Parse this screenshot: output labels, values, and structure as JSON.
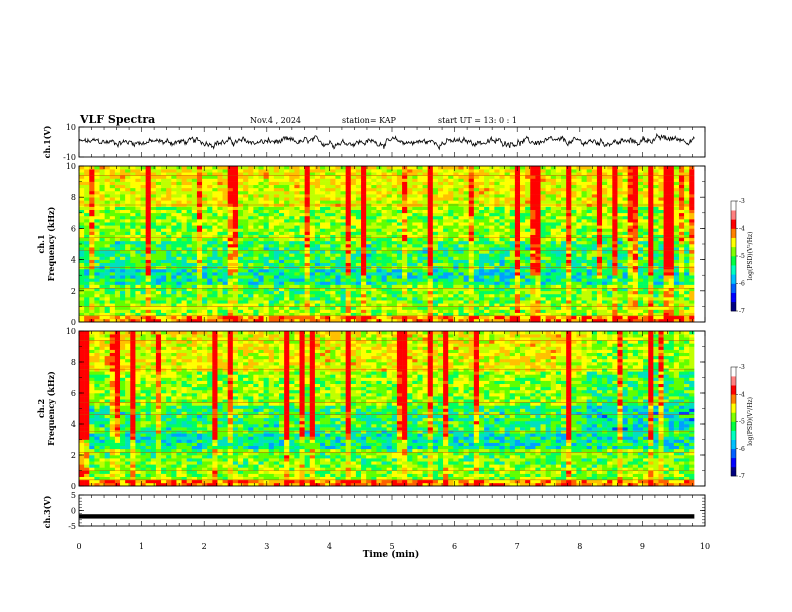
{
  "header": {
    "title": "VLF Spectra",
    "date": "Nov.4 , 2024",
    "station": "station= KAP",
    "start": "start UT =  13: 0 : 1"
  },
  "colorbar": {
    "label": "log(PSD)(V²/Hz)",
    "ticks": [
      "-3",
      "-4",
      "-5",
      "-6",
      "-7"
    ],
    "range": [
      -7,
      -3
    ],
    "colors": [
      "#000080",
      "#0000ff",
      "#00c0ff",
      "#00ff80",
      "#80ff00",
      "#ffff00",
      "#ff8000",
      "#ff0000",
      "#ffffff"
    ]
  },
  "chart_data": [
    {
      "type": "line",
      "name": "ch1-waveform",
      "ylabel": "ch.1(V)",
      "ylim": [
        -10,
        10
      ],
      "yticks": [
        "10",
        "-10"
      ],
      "xlim": [
        0,
        10
      ],
      "description_values": "noisy waveform roughly between -5 and +5 V over 0-9.8 min"
    },
    {
      "type": "heatmap",
      "name": "ch1-spectrogram",
      "ylabel": "ch.1\nFrequency (kHz)",
      "ylim": [
        0,
        10
      ],
      "yticks": [
        "0",
        "2",
        "4",
        "6",
        "8",
        "10"
      ],
      "xlim": [
        0,
        9.8
      ],
      "zrange": [
        -7,
        -3
      ]
    },
    {
      "type": "heatmap",
      "name": "ch2-spectrogram",
      "ylabel": "ch.2\nFrequency (kHz)",
      "ylim": [
        0,
        10
      ],
      "yticks": [
        "0",
        "2",
        "4",
        "6",
        "8",
        "10"
      ],
      "xlim": [
        0,
        9.8
      ],
      "zrange": [
        -7,
        -3
      ]
    },
    {
      "type": "line",
      "name": "ch3-waveform",
      "ylabel": "ch.3(V)",
      "ylim": [
        -5,
        5
      ],
      "yticks": [
        "5",
        "0",
        "-5"
      ],
      "xlim": [
        0,
        10
      ],
      "values_hint": "near constant about -2 V with small fluctuation"
    }
  ],
  "xaxis": {
    "label": "Time (min)",
    "ticks": [
      "0",
      "1",
      "2",
      "3",
      "4",
      "5",
      "6",
      "7",
      "8",
      "9",
      "10"
    ],
    "range": [
      0,
      10
    ]
  }
}
